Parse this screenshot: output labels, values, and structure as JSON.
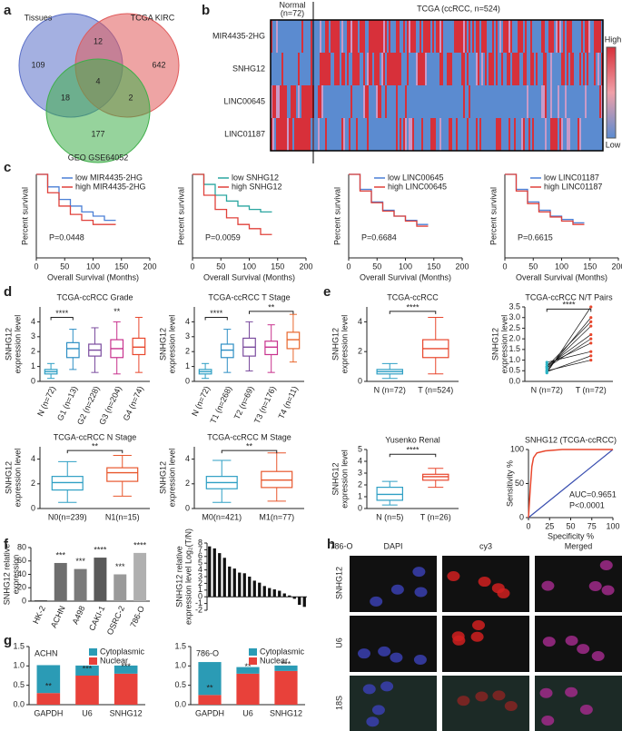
{
  "panel_labels": [
    "a",
    "b",
    "c",
    "d",
    "e",
    "f",
    "g",
    "h"
  ],
  "a": {
    "sets": [
      "Tissues",
      "TCGA KIRC",
      "GEO GSE64052"
    ],
    "counts": [
      109,
      12,
      642,
      18,
      4,
      2,
      177
    ]
  },
  "b": {
    "normal": [
      "Normal",
      "(n=72)"
    ],
    "title": "TCGA (ccRCC, n=524)",
    "genes": [
      "MIR4435-2HG",
      "SNHG12",
      "LINC00645",
      "LINC01187"
    ],
    "gene_colors": [
      "#222222",
      "#e0302a",
      "#222222",
      "#222222"
    ],
    "scale": [
      "High",
      "Low"
    ]
  },
  "c": {
    "ylabel": "Percent survival",
    "xlabel": "Overall Survival (Months)",
    "xlim": [
      0,
      200
    ],
    "xticks": [
      0,
      50,
      100,
      150,
      200
    ],
    "ylim": [
      0,
      100
    ],
    "x": [
      0,
      20,
      40,
      60,
      80,
      100,
      120,
      140
    ],
    "plots": [
      {
        "p": "P=0.0448",
        "series": [
          {
            "name": "low MIR4435-2HG",
            "color": "#4a7fd6",
            "y": [
              100,
              85,
              70,
              62,
              55,
              50,
              45,
              45
            ]
          },
          {
            "name": "high MIR4435-2HG",
            "color": "#e0413a",
            "y": [
              100,
              78,
              62,
              52,
              45,
              40,
              40,
              40
            ]
          }
        ]
      },
      {
        "p": "P=0.0059",
        "series": [
          {
            "name": "low SNHG12",
            "color": "#2aa6a0",
            "y": [
              100,
              88,
              75,
              68,
              62,
              58,
              55,
              55
            ]
          },
          {
            "name": "high SNHG12",
            "color": "#e0413a",
            "y": [
              100,
              75,
              58,
              48,
              40,
              35,
              28,
              28
            ]
          }
        ]
      },
      {
        "p": "P=0.6684",
        "series": [
          {
            "name": "low LINC00645",
            "color": "#4a7fd6",
            "y": [
              100,
              82,
              67,
              57,
              50,
              45,
              40,
              40
            ]
          },
          {
            "name": "high LINC00645",
            "color": "#e0413a",
            "y": [
              100,
              80,
              66,
              56,
              50,
              44,
              38,
              38
            ]
          }
        ]
      },
      {
        "p": "P=0.6615",
        "series": [
          {
            "name": "low LINC01187",
            "color": "#4a7fd6",
            "y": [
              100,
              82,
              67,
              57,
              50,
              46,
              42,
              42
            ]
          },
          {
            "name": "high LINC01187",
            "color": "#e0413a",
            "y": [
              100,
              80,
              65,
              55,
              49,
              44,
              40,
              40
            ]
          }
        ]
      }
    ]
  },
  "d": {
    "ylabel": [
      "SNHG12",
      "expression level"
    ],
    "plots": [
      {
        "title": "TCGA-ccRCC Grade",
        "ylim": [
          0,
          5
        ],
        "yticks": [
          0,
          1,
          2,
          3,
          4
        ],
        "categories": [
          "N (n=72)",
          "G1 (n=13)",
          "G2 (n=228)",
          "G3 (n=204)",
          "G4 (n=74)"
        ],
        "boxes": [
          {
            "color": "#2e9fc4",
            "stats": [
              0.2,
              0.5,
              0.65,
              0.8,
              1.2
            ]
          },
          {
            "color": "#2e8fc4",
            "stats": [
              0.8,
              1.6,
              2.2,
              2.6,
              3.5
            ]
          },
          {
            "color": "#7b4c9e",
            "stats": [
              0.6,
              1.7,
              2.1,
              2.5,
              3.6
            ]
          },
          {
            "color": "#c8328e",
            "stats": [
              0.5,
              1.6,
              2.2,
              2.8,
              4.0
            ]
          },
          {
            "color": "#e8472d",
            "stats": [
              0.6,
              1.8,
              2.3,
              2.9,
              4.3
            ]
          }
        ],
        "sig": [
          "****",
          "**"
        ]
      },
      {
        "title": "TCGA-ccRCC T Stage",
        "ylim": [
          0,
          5
        ],
        "yticks": [
          0,
          1,
          2,
          3,
          4
        ],
        "categories": [
          "N (n=72)",
          "T1 (n=268)",
          "T2 (n=69)",
          "T3 (n=176)",
          "T4 (n=11)"
        ],
        "boxes": [
          {
            "color": "#2e9fc4",
            "stats": [
              0.2,
              0.5,
              0.65,
              0.8,
              1.2
            ]
          },
          {
            "color": "#2e8fc4",
            "stats": [
              0.6,
              1.6,
              2.1,
              2.5,
              3.5
            ]
          },
          {
            "color": "#7b4c9e",
            "stats": [
              0.7,
              1.7,
              2.3,
              2.9,
              4.0
            ]
          },
          {
            "color": "#c8328e",
            "stats": [
              0.6,
              1.8,
              2.3,
              2.7,
              3.8
            ]
          },
          {
            "color": "#e8672d",
            "stats": [
              1.3,
              2.2,
              2.8,
              3.3,
              4.5
            ]
          }
        ],
        "sig": [
          "****",
          "**"
        ]
      },
      {
        "title": "TCGA-ccRCC N Stage",
        "ylim": [
          0,
          5
        ],
        "yticks": [
          0,
          2,
          4
        ],
        "categories": [
          "N0(n=239)",
          "N1(n=15)"
        ],
        "boxes": [
          {
            "color": "#2e9fc4",
            "stats": [
              0.5,
              1.5,
              2.1,
              2.6,
              3.8
            ]
          },
          {
            "color": "#e8572d",
            "stats": [
              1.0,
              2.2,
              2.9,
              3.3,
              4.3
            ]
          }
        ],
        "sig": [
          "**"
        ]
      },
      {
        "title": "TCGA-ccRCC M Stage",
        "ylim": [
          0,
          5
        ],
        "yticks": [
          0,
          2,
          4
        ],
        "categories": [
          "M0(n=421)",
          "M1(n=77)"
        ],
        "boxes": [
          {
            "color": "#2e9fc4",
            "stats": [
              0.5,
              1.6,
              2.1,
              2.6,
              3.9
            ]
          },
          {
            "color": "#e8572d",
            "stats": [
              0.6,
              1.7,
              2.3,
              3.0,
              4.5
            ]
          }
        ],
        "sig": [
          "**"
        ]
      }
    ]
  },
  "e": {
    "ylabel": [
      "SNHG12",
      "expression level"
    ],
    "tcga": {
      "title": "TCGA-ccRCC",
      "ylim": [
        0,
        5
      ],
      "yticks": [
        0,
        2,
        4
      ],
      "categories": [
        "N (n=72)",
        "T (n=524)"
      ],
      "boxes": [
        {
          "color": "#2e9fc4",
          "stats": [
            0.2,
            0.5,
            0.65,
            0.8,
            1.2
          ]
        },
        {
          "color": "#e8472d",
          "stats": [
            0.5,
            1.6,
            2.2,
            2.8,
            4.3
          ]
        }
      ],
      "sig": [
        "****"
      ]
    },
    "pairs": {
      "title": "TCGA-ccRCC N/T Pairs",
      "ylim": [
        0,
        3.5
      ],
      "yticks": [
        {
          "value": 0,
          "label": "0.0"
        },
        {
          "value": 0.5,
          "label": "0.5"
        },
        {
          "value": 1,
          "label": "1.0"
        },
        {
          "value": 1.5,
          "label": "1.5"
        },
        {
          "value": 2,
          "label": "2.0"
        },
        {
          "value": 2.5,
          "label": "2.5"
        },
        {
          "value": 3,
          "label": "3.0"
        },
        {
          "value": 3.5,
          "label": "3.5"
        }
      ],
      "categories": [
        "N (n=72)",
        "T (n=72)"
      ],
      "N": [
        0.4,
        0.5,
        0.6,
        0.7,
        0.8,
        0.9,
        0.5,
        0.7,
        0.45,
        0.65
      ],
      "T": [
        3.5,
        3.0,
        2.6,
        2.2,
        1.8,
        1.4,
        1.0,
        2.8,
        1.2,
        2.0
      ],
      "colors": [
        "#2ab3c4",
        "#e8472d"
      ],
      "sig": [
        "****"
      ]
    },
    "yusenko": {
      "title": "Yusenko Renal",
      "ylim": [
        0,
        5
      ],
      "yticks": [
        0,
        1,
        2,
        3,
        4,
        5
      ],
      "categories": [
        "N (n=5)",
        "T (n=26)"
      ],
      "boxes": [
        {
          "color": "#2e9fc4",
          "stats": [
            0.3,
            0.7,
            1.2,
            1.8,
            2.3
          ]
        },
        {
          "color": "#e8472d",
          "stats": [
            1.8,
            2.4,
            2.7,
            2.9,
            3.4
          ]
        }
      ],
      "sig": [
        "****"
      ]
    },
    "roc": {
      "title": "SNHG12 (TCGA-ccRCC)",
      "xlabel": "Specificity %",
      "ylabel": "Sensitivity %",
      "xlim": [
        0,
        100
      ],
      "xticks": [
        0,
        25,
        50,
        75,
        100
      ],
      "ylim": [
        0,
        100
      ],
      "yticks": [
        0,
        50,
        100
      ],
      "x": [
        0,
        2,
        4,
        6,
        10,
        20,
        40,
        100
      ],
      "y": [
        0,
        40,
        75,
        88,
        95,
        98,
        100,
        100
      ],
      "color": "#e8472d",
      "diag_color": "#3a4fb0",
      "auc": "AUC=0.9651",
      "p": "P<0.0001"
    }
  },
  "f": {
    "bar": {
      "ylabel": [
        "SNHG12 relative",
        "expression"
      ],
      "categories": [
        "HK-2",
        "ACHN",
        "A498",
        "CAKI-1",
        "OSRC-2",
        "786-O"
      ],
      "values": [
        1,
        57,
        48,
        65,
        40,
        72
      ],
      "colors": [
        "#111111",
        "#6e6e6e",
        "#7a7a7a",
        "#5a5a5a",
        "#9a9a9a",
        "#b0b0b0"
      ],
      "ylim": [
        0,
        80
      ],
      "yticks": [
        0,
        20,
        40,
        60,
        80
      ],
      "sig": [
        null,
        "***",
        "***",
        "****",
        "***",
        "****"
      ]
    },
    "ratio": {
      "ylabel": [
        "SNHG12 relative",
        "expression level Log₂(T/N)"
      ],
      "values": [
        7.5,
        7.2,
        6.5,
        5.8,
        4.5,
        4.2,
        3.6,
        3.5,
        3.0,
        2.4,
        2.1,
        1.6,
        1.3,
        1.1,
        0.9,
        0.5,
        0.2,
        -0.3,
        -1.2,
        -1.5
      ],
      "color": "#111111",
      "ylim": [
        -2,
        8
      ],
      "yticks": [
        -2,
        -1,
        0,
        1,
        2,
        3,
        4,
        5,
        6,
        7,
        8
      ]
    }
  },
  "g": {
    "ylim": [
      0,
      1.5
    ],
    "yticks": [
      {
        "value": 0,
        "label": "0.0"
      },
      {
        "value": 0.5,
        "label": "0.5"
      },
      {
        "value": 1,
        "label": "1.0"
      },
      {
        "value": 1.5,
        "label": "1.5"
      }
    ],
    "plots": [
      {
        "title": "ACHN",
        "categories": [
          "GAPDH",
          "U6",
          "SNHG12"
        ],
        "series": [
          {
            "name": "Cytoplasmic",
            "color": "#2b9bb5",
            "values": [
              0.72,
              0.26,
              0.21
            ]
          },
          {
            "name": "Nuclear",
            "color": "#e8413a",
            "values": [
              0.3,
              0.75,
              0.8
            ]
          }
        ],
        "sig": [
          "**",
          "***",
          "***"
        ]
      },
      {
        "title": "786-O",
        "categories": [
          "GAPDH",
          "U6",
          "SNHG12"
        ],
        "series": [
          {
            "name": "Cytoplasmic",
            "color": "#2b9bb5",
            "values": [
              0.85,
              0.17,
              0.14
            ]
          },
          {
            "name": "Nuclear",
            "color": "#e8413a",
            "values": [
              0.25,
              0.8,
              0.87
            ]
          }
        ],
        "sig": [
          "**",
          "**",
          "***"
        ]
      }
    ]
  },
  "h": {
    "cell_line": "786-O",
    "columns": [
      "DAPI",
      "cy3",
      "Merged"
    ],
    "rows": [
      "SNHG12",
      "U6",
      "18S"
    ]
  }
}
